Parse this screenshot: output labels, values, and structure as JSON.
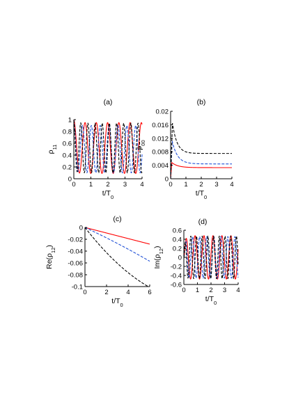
{
  "chart_data": [
    {
      "id": "a",
      "type": "line",
      "panel_label": "(a)",
      "xlabel": "t/T",
      "xlabel_sub": "0",
      "ylabel": "ρ",
      "ylabel_sub": "11",
      "xlim": [
        0,
        4
      ],
      "ylim": [
        0,
        1
      ],
      "xticks": [
        "0",
        "1",
        "2",
        "3",
        "4"
      ],
      "yticks": [
        "0",
        "0.2",
        "0.4",
        "0.6",
        "0.8",
        "1"
      ],
      "series": [
        {
          "color": "#ff0000",
          "dash": "solid",
          "model": {
            "kind": "osc",
            "p": 0.66,
            "amp": 0.43,
            "mid": 0.52,
            "ph": 0.0
          }
        },
        {
          "color": "#1f4fd6",
          "dash": "dashed",
          "model": {
            "kind": "osc",
            "p": 0.52,
            "amp": 0.4,
            "mid": 0.5,
            "ph": 0.15
          }
        },
        {
          "color": "#000000",
          "dash": "dashed",
          "model": {
            "kind": "osc",
            "p": 0.42,
            "amp": 0.42,
            "mid": 0.52,
            "ph": 0.22
          }
        }
      ]
    },
    {
      "id": "b",
      "type": "line",
      "panel_label": "(b)",
      "xlabel": "t/T",
      "xlabel_sub": "0",
      "ylabel": "ρ",
      "ylabel_sub": "00",
      "xlim": [
        0,
        4
      ],
      "ylim": [
        0,
        0.02
      ],
      "xticks": [
        "0",
        "1",
        "2",
        "3",
        "4"
      ],
      "yticks": [
        "0",
        "0.004",
        "0.008",
        "0.012",
        "0.016",
        "0.02"
      ],
      "series": [
        {
          "color": "#ff0000",
          "dash": "solid",
          "model": {
            "kind": "peakdecay",
            "tpk": 0.08,
            "peak": 0.0048,
            "final": 0.0033,
            "tau": 0.4
          }
        },
        {
          "color": "#1f4fd6",
          "dash": "dashed",
          "model": {
            "kind": "peakdecay",
            "tpk": 0.1,
            "peak": 0.0112,
            "final": 0.0044,
            "tau": 0.35
          }
        },
        {
          "color": "#000000",
          "dash": "dashed",
          "model": {
            "kind": "peakdecay",
            "tpk": 0.12,
            "peak": 0.0165,
            "final": 0.0075,
            "tau": 0.3
          }
        }
      ]
    },
    {
      "id": "c",
      "type": "line",
      "panel_label": "(c)",
      "xlabel": "t/T",
      "xlabel_sub": "0",
      "ylabel": "Re(ρ",
      "ylabel_sub": "12",
      "ylabel_tail": ")",
      "xlim": [
        0,
        6
      ],
      "ylim": [
        -0.1,
        0
      ],
      "xticks": [
        "0",
        "2",
        "4",
        "6"
      ],
      "yticks": [
        "-0.1",
        "-0.08",
        "-0.06",
        "-0.04",
        "-0.02",
        "0"
      ],
      "series": [
        {
          "color": "#ff0000",
          "dash": "solid",
          "model": {
            "kind": "lin",
            "slope": -0.0047,
            "curv": 0
          }
        },
        {
          "color": "#1f4fd6",
          "dash": "dashed",
          "model": {
            "kind": "lin",
            "slope": -0.0085,
            "curv": -0.00017
          }
        },
        {
          "color": "#000000",
          "dash": "dashed",
          "model": {
            "kind": "lin",
            "slope": -0.0235,
            "curv": 0.0011
          }
        }
      ]
    },
    {
      "id": "d",
      "type": "line",
      "panel_label": "(d)",
      "xlabel": "t/T",
      "xlabel_sub": "0",
      "ylabel": "Im(ρ",
      "ylabel_sub": "12",
      "ylabel_tail": ")",
      "xlim": [
        0,
        4
      ],
      "ylim": [
        -0.6,
        0.6
      ],
      "xticks": [
        "0",
        "1",
        "2",
        "3",
        "4"
      ],
      "yticks": [
        "-0.6",
        "-0.4",
        "-0.2",
        "0",
        "0.2",
        "0.4",
        "0.6"
      ],
      "series": [
        {
          "color": "#ff0000",
          "dash": "solid",
          "model": {
            "kind": "sin",
            "p": 0.66,
            "amp": 0.48,
            "ph": 0.0
          }
        },
        {
          "color": "#1f4fd6",
          "dash": "dashed",
          "model": {
            "kind": "sin",
            "p": 0.52,
            "amp": 0.46,
            "ph": 0.1
          }
        },
        {
          "color": "#000000",
          "dash": "dashed",
          "model": {
            "kind": "sin",
            "p": 0.42,
            "amp": 0.47,
            "ph": 0.2
          }
        }
      ]
    }
  ]
}
